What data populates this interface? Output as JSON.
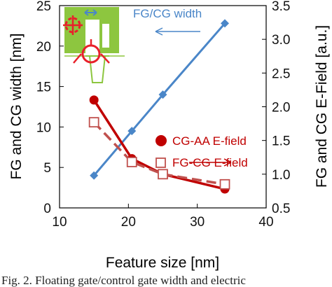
{
  "chart_data": {
    "type": "line",
    "xlabel": "Feature size [nm]",
    "ylabel_left": "FG and CG width [nm]",
    "ylabel_right": "FG and CG E-Field [a.u.]",
    "xlim": [
      10,
      40
    ],
    "ylim_left": [
      0,
      25
    ],
    "ylim_right": [
      0.5,
      3.5
    ],
    "x_ticks": [
      "10",
      "20",
      "30",
      "40"
    ],
    "y_ticks_left": [
      "0",
      "5",
      "10",
      "15",
      "20",
      "25"
    ],
    "y_ticks_right": [
      "0.5",
      "1.0",
      "1.5",
      "2.0",
      "2.5",
      "3.0",
      "3.5"
    ],
    "grid": false,
    "series": [
      {
        "name": "FG/CG width",
        "axis": "left",
        "color": "#4a86c8",
        "marker": "diamond",
        "x": [
          15,
          20.5,
          25,
          34
        ],
        "y": [
          4,
          9.5,
          14,
          22.8
        ]
      },
      {
        "name": "CG-AA E-field",
        "axis": "right",
        "color": "#c00000",
        "marker": "filled-circle",
        "line": "solid",
        "x": [
          15,
          20.5,
          25,
          34
        ],
        "y": [
          2.1,
          1.23,
          1.0,
          0.78
        ]
      },
      {
        "name": "FG-CG E-field",
        "axis": "right",
        "color": "#c0504d",
        "marker": "open-square",
        "line": "dashed",
        "x": [
          15,
          20.5,
          25,
          34
        ],
        "y": [
          1.77,
          1.18,
          1.0,
          0.85
        ]
      }
    ],
    "annotations": [
      {
        "text": "FG/CG width",
        "arrow": "left"
      },
      {
        "text": "",
        "arrow": "right"
      }
    ],
    "inset": {
      "description_icon": "cell-cross-section-icon",
      "fill": "#8dc63f",
      "marker": "#e8202a"
    }
  },
  "caption": "Fig. 2. Floating gate/control gate width and electric"
}
